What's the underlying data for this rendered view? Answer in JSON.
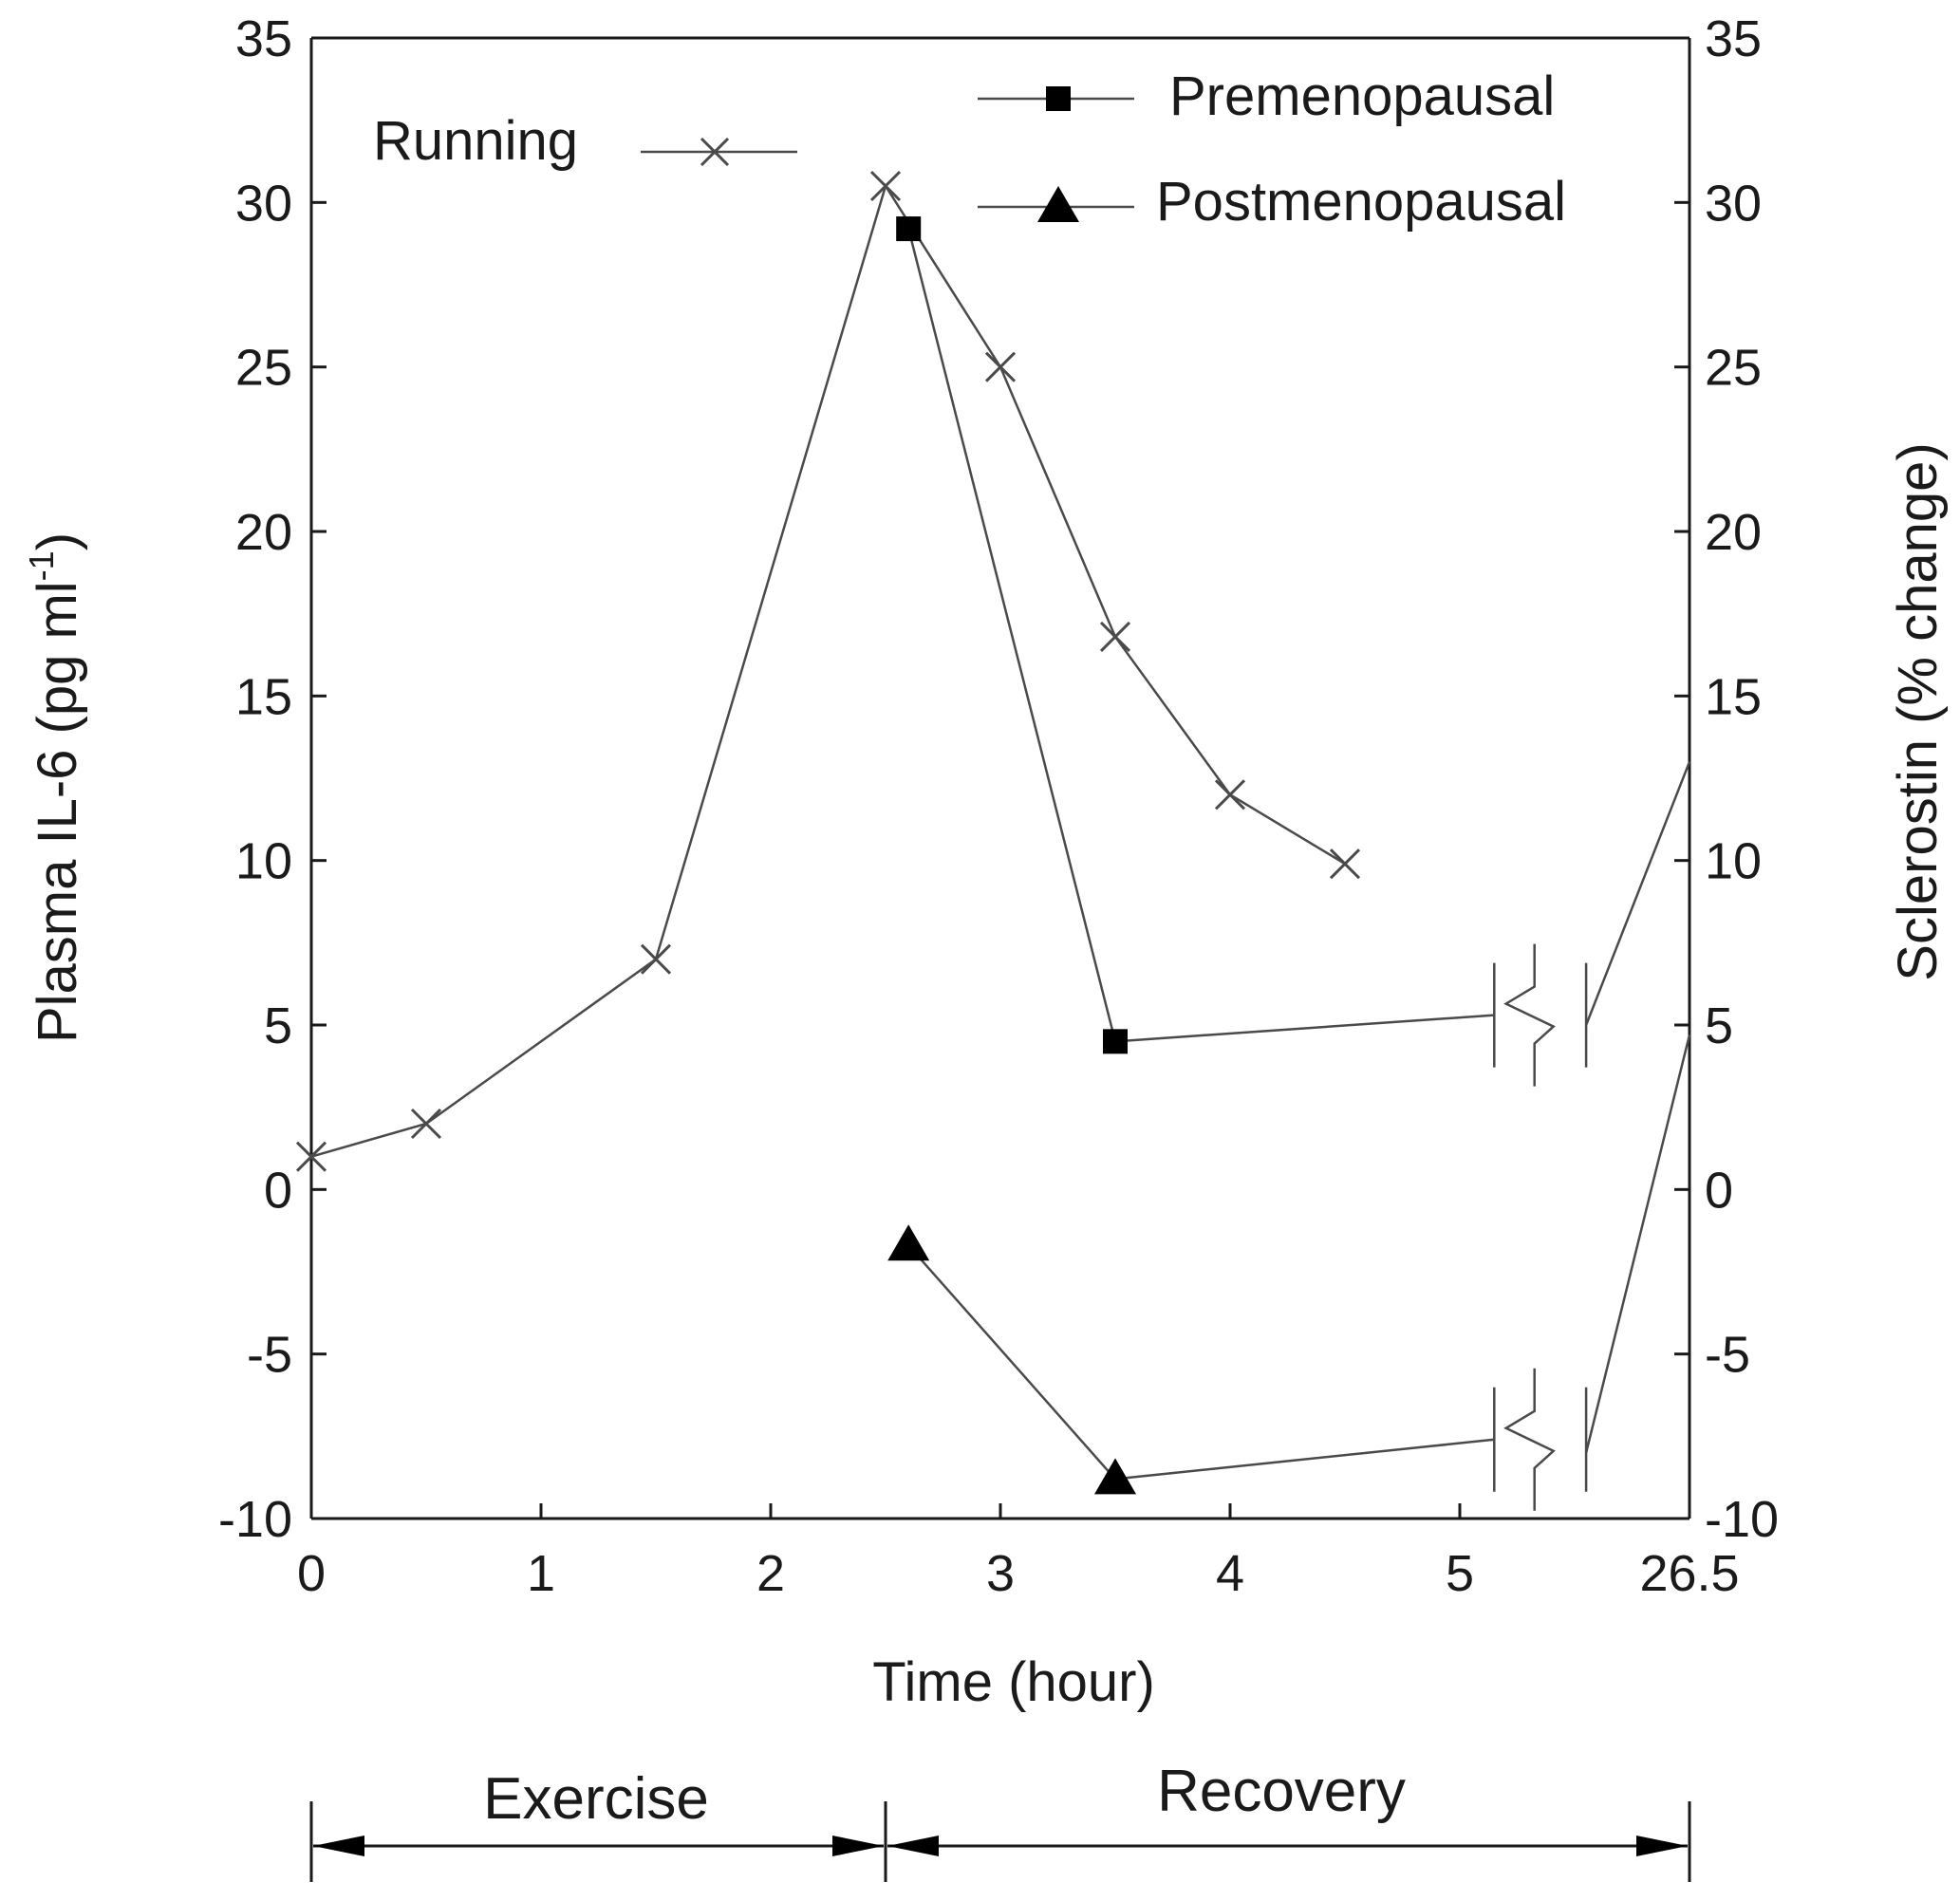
{
  "chart_data": {
    "type": "line",
    "title": "",
    "xlabel": "Time (hour)",
    "ylabel_left": "Plasma IL-6 (pg ml",
    "ylabel_left_sup": "-1",
    "ylabel_left_close": ")",
    "ylabel_right": "Sclerostin (% change)",
    "ylim": [
      -10,
      35
    ],
    "yticks": [
      -10,
      -5,
      0,
      5,
      10,
      15,
      20,
      25,
      30,
      35
    ],
    "xticks": [
      {
        "value": 0,
        "label": "0"
      },
      {
        "value": 1,
        "label": "1"
      },
      {
        "value": 2,
        "label": "2"
      },
      {
        "value": 3,
        "label": "3"
      },
      {
        "value": 4,
        "label": "4"
      },
      {
        "value": 5,
        "label": "5"
      },
      {
        "value": 6,
        "label": "26.5"
      }
    ],
    "xlim": [
      0,
      6
    ],
    "axis_break": {
      "between": [
        5,
        6
      ]
    },
    "series": [
      {
        "name": "Running",
        "axis": "left",
        "marker": "x",
        "x": [
          0,
          0.5,
          1.5,
          2.5,
          3,
          3.5,
          4,
          4.5
        ],
        "y": [
          1,
          2,
          7,
          30.5,
          25,
          16.8,
          12,
          9.9
        ]
      },
      {
        "name": "Premenopausal",
        "axis": "right",
        "marker": "square",
        "x": [
          2.6,
          3.5
        ],
        "y": [
          29.2,
          4.5
        ],
        "continuation": {
          "x": [
            3.5,
            5.15
          ],
          "y": [
            4.5,
            5.3
          ],
          "after_x": 5.55,
          "after_y": 5,
          "end_x": 6,
          "end_y": 13
        }
      },
      {
        "name": "Postmenopausal",
        "axis": "right",
        "marker": "triangle",
        "x": [
          2.6,
          3.5
        ],
        "y": [
          -1.7,
          -8.8
        ],
        "continuation": {
          "x": [
            3.5,
            5.15
          ],
          "y": [
            -8.8,
            -7.6
          ],
          "after_x": 5.55,
          "after_y": -8,
          "end_x": 6,
          "end_y": 4.7
        }
      }
    ],
    "legend": {
      "running_label": "Running",
      "premenopausal_label": "Premenopausal",
      "postmenopausal_label": "Postmenopausal",
      "placement": "top"
    },
    "phases": [
      {
        "label": "Exercise",
        "from": 0,
        "to": 2.5
      },
      {
        "label": "Recovery",
        "from": 2.5,
        "to": 6
      }
    ]
  }
}
